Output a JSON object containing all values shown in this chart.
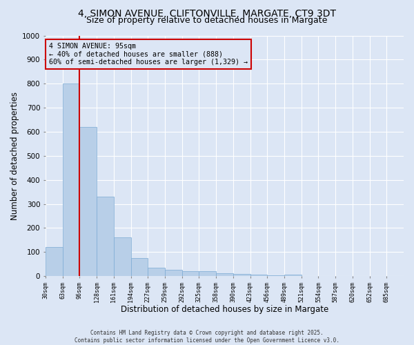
{
  "title1": "4, SIMON AVENUE, CLIFTONVILLE, MARGATE, CT9 3DT",
  "title2": "Size of property relative to detached houses in Margate",
  "xlabel": "Distribution of detached houses by size in Margate",
  "ylabel": "Number of detached properties",
  "footer1": "Contains HM Land Registry data © Crown copyright and database right 2025.",
  "footer2": "Contains public sector information licensed under the Open Government Licence v3.0.",
  "bins": [
    "30sqm",
    "63sqm",
    "96sqm",
    "128sqm",
    "161sqm",
    "194sqm",
    "227sqm",
    "259sqm",
    "292sqm",
    "325sqm",
    "358sqm",
    "390sqm",
    "423sqm",
    "456sqm",
    "489sqm",
    "521sqm",
    "554sqm",
    "587sqm",
    "620sqm",
    "652sqm",
    "685sqm"
  ],
  "bar_values": [
    120,
    800,
    620,
    330,
    160,
    75,
    35,
    25,
    20,
    20,
    12,
    8,
    5,
    3,
    5,
    0,
    0,
    0,
    0,
    0
  ],
  "bar_color": "#b8cfe8",
  "bar_edge_color": "#7baad4",
  "vline_x": 2,
  "vline_color": "#cc0000",
  "annotation_text": "4 SIMON AVENUE: 95sqm\n← 40% of detached houses are smaller (888)\n60% of semi-detached houses are larger (1,329) →",
  "annotation_box_color": "#cc0000",
  "background_color": "#dce6f5",
  "ylim": [
    0,
    1000
  ],
  "yticks": [
    0,
    100,
    200,
    300,
    400,
    500,
    600,
    700,
    800,
    900,
    1000
  ],
  "grid_color": "#ffffff",
  "title_fontsize": 10,
  "subtitle_fontsize": 9,
  "axis_fontsize": 8.5
}
